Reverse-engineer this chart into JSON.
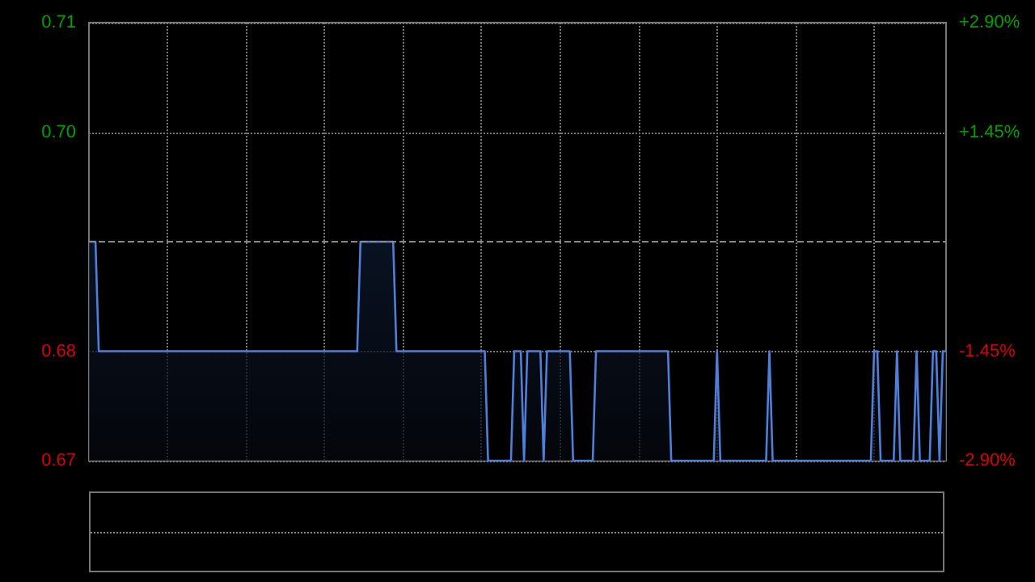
{
  "chart_data": {
    "type": "area",
    "categories": [
      null,
      null,
      null,
      null,
      null,
      null,
      null,
      null,
      null,
      null,
      null,
      null,
      null,
      null,
      null,
      null,
      null,
      null,
      null,
      null,
      null,
      null,
      null,
      null,
      null,
      null,
      null,
      null,
      null,
      null,
      null,
      null,
      null,
      null,
      null,
      null,
      null,
      null,
      null,
      null,
      null,
      null,
      null,
      null,
      null,
      null,
      null,
      null,
      null,
      null,
      null,
      null,
      null,
      null,
      null,
      null,
      null,
      null,
      null,
      null,
      null,
      null,
      null,
      null,
      null,
      null,
      null,
      null,
      null,
      null,
      null,
      null,
      null,
      null,
      null,
      null,
      null,
      null,
      null,
      null,
      null,
      null,
      null,
      null,
      null,
      null,
      null,
      null,
      null,
      null,
      null,
      null,
      null,
      null,
      null,
      null,
      null,
      null,
      null,
      null,
      null,
      null,
      null,
      null,
      null,
      null,
      null,
      null,
      null,
      null,
      null,
      null,
      null,
      null,
      null,
      null,
      null,
      null,
      null,
      null,
      null,
      null,
      null,
      null,
      null,
      null,
      null,
      null,
      null,
      null,
      null,
      null,
      null,
      null,
      null,
      null,
      null,
      null,
      null,
      null,
      null,
      null,
      null,
      null,
      null,
      null,
      null,
      null,
      null,
      null,
      null,
      null,
      null,
      null,
      null,
      null,
      null,
      null,
      null,
      null,
      null,
      null,
      null,
      null,
      null,
      null,
      null,
      null,
      null,
      null,
      null,
      null,
      null,
      null,
      null,
      null,
      null,
      null,
      null,
      null,
      null,
      null,
      null,
      null,
      null,
      null,
      null,
      null,
      null,
      null,
      null,
      null,
      null,
      null,
      null,
      null,
      null,
      null,
      null,
      null,
      null,
      null,
      null,
      null,
      null,
      null,
      null,
      null,
      null,
      null,
      null,
      null,
      null,
      null,
      null,
      null,
      null,
      null,
      null,
      null,
      null,
      null,
      null,
      null,
      null,
      null,
      null,
      null,
      null,
      null,
      null,
      null,
      null,
      null,
      null,
      null,
      null,
      null,
      null,
      null,
      null,
      null,
      null,
      null,
      null,
      null,
      null,
      null,
      null,
      null,
      null,
      null,
      null,
      null,
      null,
      null,
      null,
      null,
      null,
      null,
      null,
      null,
      null
    ],
    "series": [
      {
        "color": "#4f7fd8",
        "values": [
          0.69,
          0.69,
          0.69,
          0.68,
          0.68,
          0.68,
          0.68,
          0.68,
          0.68,
          0.68,
          0.68,
          0.68,
          0.68,
          0.68,
          0.68,
          0.68,
          0.68,
          0.68,
          0.68,
          0.68,
          0.68,
          0.68,
          0.68,
          0.68,
          0.68,
          0.68,
          0.68,
          0.68,
          0.68,
          0.68,
          0.68,
          0.68,
          0.68,
          0.68,
          0.68,
          0.68,
          0.68,
          0.68,
          0.68,
          0.68,
          0.68,
          0.68,
          0.68,
          0.68,
          0.68,
          0.68,
          0.68,
          0.68,
          0.68,
          0.68,
          0.68,
          0.68,
          0.68,
          0.68,
          0.68,
          0.68,
          0.68,
          0.68,
          0.68,
          0.68,
          0.68,
          0.68,
          0.68,
          0.68,
          0.68,
          0.68,
          0.68,
          0.68,
          0.68,
          0.68,
          0.68,
          0.68,
          0.68,
          0.68,
          0.68,
          0.68,
          0.68,
          0.68,
          0.68,
          0.68,
          0.68,
          0.68,
          0.68,
          0.69,
          0.69,
          0.69,
          0.69,
          0.69,
          0.69,
          0.69,
          0.69,
          0.69,
          0.69,
          0.69,
          0.68,
          0.68,
          0.68,
          0.68,
          0.68,
          0.68,
          0.68,
          0.68,
          0.68,
          0.68,
          0.68,
          0.68,
          0.68,
          0.68,
          0.68,
          0.68,
          0.68,
          0.68,
          0.68,
          0.68,
          0.68,
          0.68,
          0.68,
          0.68,
          0.68,
          0.68,
          0.68,
          0.68,
          0.67,
          0.67,
          0.67,
          0.67,
          0.67,
          0.67,
          0.67,
          0.67,
          0.68,
          0.68,
          0.68,
          0.67,
          0.68,
          0.68,
          0.68,
          0.68,
          0.68,
          0.67,
          0.68,
          0.68,
          0.68,
          0.68,
          0.68,
          0.68,
          0.68,
          0.68,
          0.67,
          0.67,
          0.67,
          0.67,
          0.67,
          0.67,
          0.67,
          0.68,
          0.68,
          0.68,
          0.68,
          0.68,
          0.68,
          0.68,
          0.68,
          0.68,
          0.68,
          0.68,
          0.68,
          0.68,
          0.68,
          0.68,
          0.68,
          0.68,
          0.68,
          0.68,
          0.68,
          0.68,
          0.68,
          0.68,
          0.67,
          0.67,
          0.67,
          0.67,
          0.67,
          0.67,
          0.67,
          0.67,
          0.67,
          0.67,
          0.67,
          0.67,
          0.67,
          0.67,
          0.68,
          0.67,
          0.67,
          0.67,
          0.67,
          0.67,
          0.67,
          0.67,
          0.67,
          0.67,
          0.67,
          0.67,
          0.67,
          0.67,
          0.67,
          0.67,
          0.68,
          0.67,
          0.67,
          0.67,
          0.67,
          0.67,
          0.67,
          0.67,
          0.67,
          0.67,
          0.67,
          0.67,
          0.67,
          0.67,
          0.67,
          0.67,
          0.67,
          0.67,
          0.67,
          0.67,
          0.67,
          0.67,
          0.67,
          0.67,
          0.67,
          0.67,
          0.67,
          0.67,
          0.67,
          0.67,
          0.67,
          0.67,
          0.68,
          0.68,
          0.67,
          0.67,
          0.67,
          0.67,
          0.67,
          0.68,
          0.67,
          0.67,
          0.67,
          0.67,
          0.67,
          0.68,
          0.67,
          0.67,
          0.67,
          0.67,
          0.68,
          0.68,
          0.67,
          0.68,
          0.68
        ]
      }
    ],
    "ylim": [
      0.67,
      0.71
    ],
    "yticks": [
      0.67,
      0.68,
      {
        "value": 0.7,
        "label": "0.70"
      },
      0.71
    ],
    "y2lim": [
      -2.9,
      2.9
    ],
    "y2ticks": [
      {
        "value": -2.9,
        "label": "-2.90%"
      },
      {
        "value": -1.45,
        "label": "-1.45%"
      },
      {
        "value": 1.45,
        "label": "+1.45%"
      },
      {
        "value": 2.9,
        "label": "+2.90%"
      }
    ],
    "ref_lines": [
      {
        "axis": "y",
        "value": 0.69,
        "color": "#8a8a8a",
        "line_style": "dashed"
      }
    ],
    "grid": true,
    "line_style": "solid"
  }
}
